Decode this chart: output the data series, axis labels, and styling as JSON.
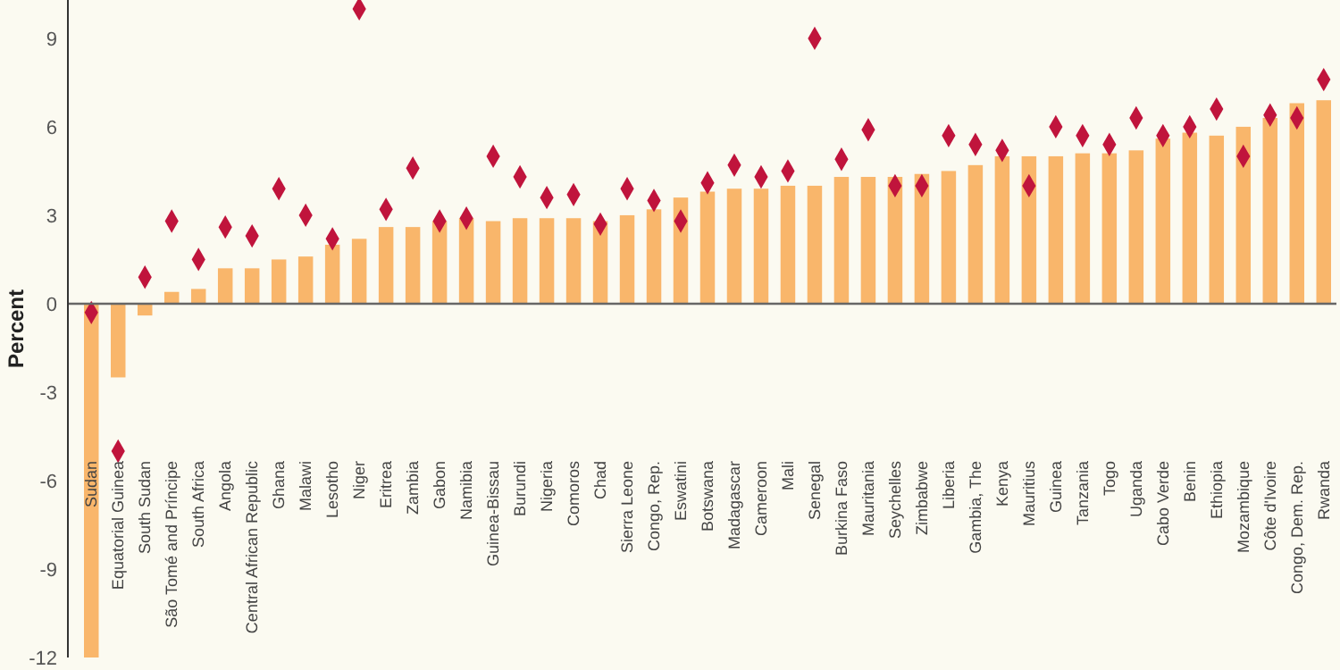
{
  "chart_data": {
    "type": "bar",
    "ylabel": "Percent",
    "categories": [
      "Sudan",
      "Equatorial Guinea",
      "South Sudan",
      "São Tomé and Príncipe",
      "South Africa",
      "Angola",
      "Central African Republic",
      "Ghana",
      "Malawi",
      "Lesotho",
      "Niger",
      "Eritrea",
      "Zambia",
      "Gabon",
      "Namibia",
      "Guinea-Bissau",
      "Burundi",
      "Nigeria",
      "Comoros",
      "Chad",
      "Sierra Leone",
      "Congo, Rep.",
      "Eswatini",
      "Botswana",
      "Madagascar",
      "Cameroon",
      "Mali",
      "Senegal",
      "Burkina Faso",
      "Mauritania",
      "Seychelles",
      "Zimbabwe",
      "Liberia",
      "Gambia, The",
      "Kenya",
      "Mauritius",
      "Guinea",
      "Tanzania",
      "Togo",
      "Uganda",
      "Cabo Verde",
      "Benin",
      "Ethiopia",
      "Mozambique",
      "Côte d'Ivoire",
      "Congo, Dem. Rep.",
      "Rwanda"
    ],
    "series": [
      {
        "color": "#f9b66b",
        "values": [
          -12.0,
          -2.5,
          -0.4,
          0.4,
          0.5,
          1.2,
          1.2,
          1.5,
          1.6,
          2.0,
          2.2,
          2.6,
          2.6,
          2.8,
          2.9,
          2.8,
          2.9,
          2.9,
          2.9,
          2.8,
          3.0,
          3.2,
          3.6,
          3.8,
          3.9,
          3.9,
          4.0,
          4.0,
          4.3,
          4.3,
          4.3,
          4.4,
          4.5,
          4.7,
          5.0,
          5.0,
          5.0,
          5.1,
          5.1,
          5.2,
          5.6,
          5.8,
          5.7,
          6.0,
          6.3,
          6.8,
          6.9
        ]
      },
      {
        "type": "scatter",
        "marker": "diamond",
        "color": "#c0143c",
        "values": [
          -0.3,
          -5.0,
          0.9,
          2.8,
          1.5,
          2.6,
          2.3,
          3.9,
          3.0,
          2.2,
          10.0,
          3.2,
          4.6,
          2.8,
          2.9,
          5.0,
          4.3,
          3.6,
          3.7,
          2.7,
          3.9,
          3.5,
          2.8,
          4.1,
          4.7,
          4.3,
          4.5,
          9.0,
          4.9,
          5.9,
          4.0,
          4.0,
          5.7,
          5.4,
          5.2,
          4.0,
          6.0,
          5.7,
          5.4,
          6.3,
          5.7,
          6.0,
          6.6,
          5.0,
          6.4,
          6.3,
          7.6
        ]
      }
    ],
    "ylim": [
      -12,
      10.3
    ],
    "yticks": [
      -12,
      -9,
      -6,
      -3,
      0,
      3,
      6,
      9
    ]
  }
}
